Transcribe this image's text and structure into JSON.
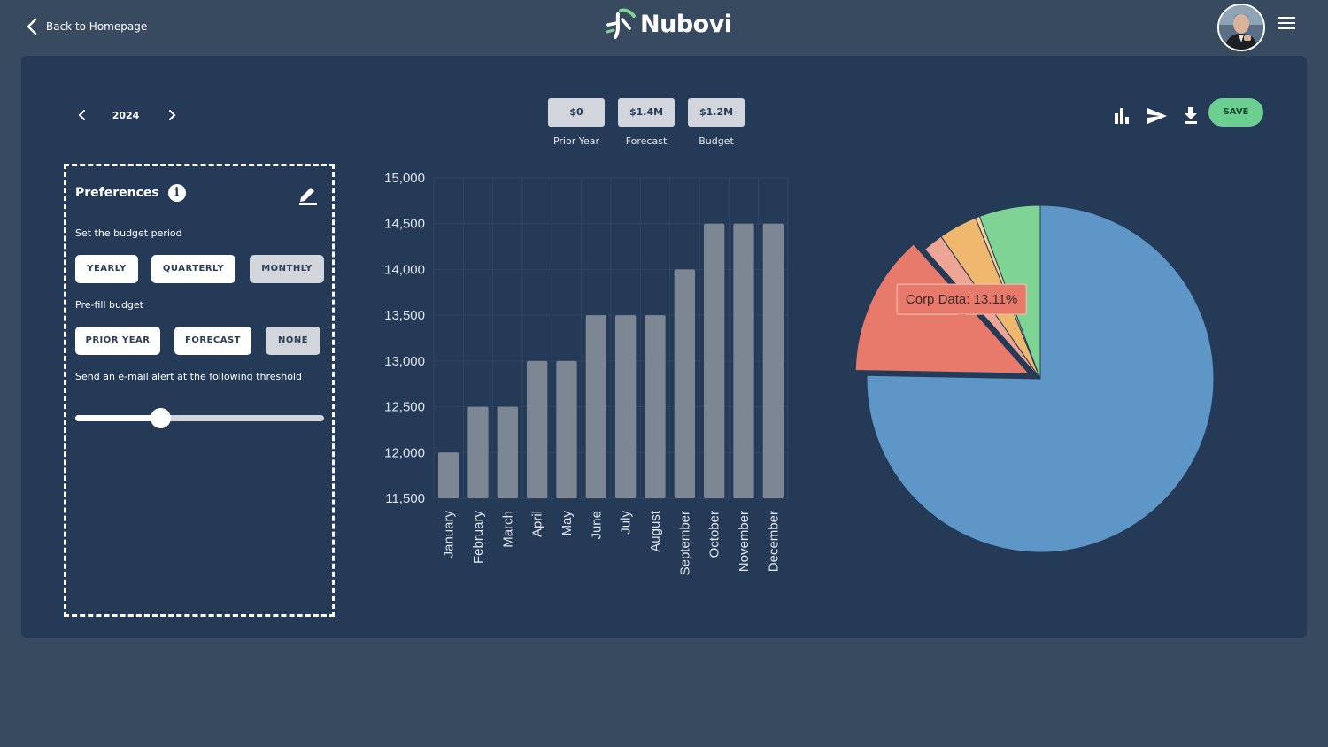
{
  "header": {
    "back_label": "Back to Homepage",
    "logo_text": "Nubovi"
  },
  "year_nav": {
    "year": "2024"
  },
  "kpis": [
    {
      "value": "$0",
      "label": "Prior Year"
    },
    {
      "value": "$1.4M",
      "label": "Forecast"
    },
    {
      "value": "$1.2M",
      "label": "Budget"
    }
  ],
  "toolbar": {
    "save_label": "SAVE",
    "icons": [
      "bar-chart-icon",
      "send-icon",
      "download-icon"
    ]
  },
  "preferences": {
    "title": "Preferences",
    "budget_period_label": "Set the budget period",
    "budget_period_options": [
      "YEARLY",
      "QUARTERLY",
      "MONTHLY"
    ],
    "budget_period_selected": "MONTHLY",
    "prefill_label": "Pre-fill budget",
    "prefill_options": [
      "PRIOR YEAR",
      "FORECAST",
      "NONE"
    ],
    "prefill_selected": "NONE",
    "alert_label": "Send an e-mail alert at the following threshold",
    "alert_threshold_fraction": 0.34
  },
  "colors": {
    "background": "#384a5f",
    "panel": "#243a56",
    "bar": "#7c8793",
    "save": "#6bd08f",
    "pie_blue": "#5e96c8",
    "pie_red": "#e87a6c",
    "pie_pink": "#eda596",
    "pie_orange": "#efb86e",
    "pie_green": "#7fd394"
  },
  "chart_data": [
    {
      "type": "bar",
      "categories": [
        "January",
        "February",
        "March",
        "April",
        "May",
        "June",
        "July",
        "August",
        "September",
        "October",
        "November",
        "December"
      ],
      "values": [
        12000,
        12500,
        12500,
        13000,
        13000,
        13500,
        13500,
        13500,
        14000,
        14500,
        14500,
        14500
      ],
      "ylim": [
        11500,
        15000
      ],
      "yticks": [
        "11,500",
        "12,000",
        "12,500",
        "13,000",
        "13,500",
        "14,000",
        "14,500",
        "15,000"
      ],
      "grid": true,
      "title": "",
      "xlabel": "",
      "ylabel": ""
    },
    {
      "type": "pie",
      "slices": [
        {
          "name": "",
          "percent": 75.3,
          "color": "#5e96c8"
        },
        {
          "name": "Corp Data",
          "percent": 13.11,
          "color": "#e87a6c",
          "exploded": true
        },
        {
          "name": "",
          "percent": 1.9,
          "color": "#eda596"
        },
        {
          "name": "",
          "percent": 3.6,
          "color": "#efb86e"
        },
        {
          "name": "",
          "percent": 0.4,
          "color": "#f4d29a"
        },
        {
          "name": "",
          "percent": 5.69,
          "color": "#7fd394"
        }
      ],
      "tooltip": "Corp Data: 13.11%"
    }
  ]
}
